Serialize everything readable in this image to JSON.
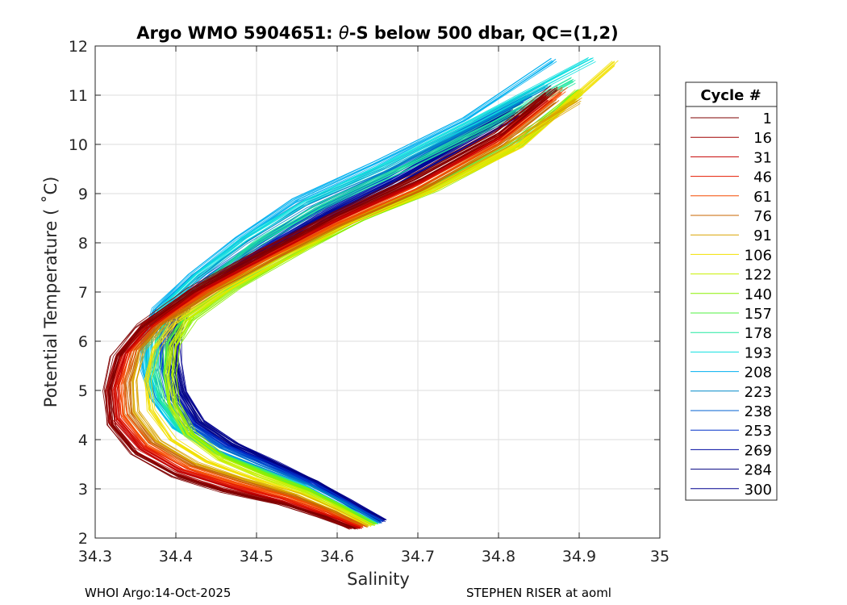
{
  "chart_data": {
    "type": "line",
    "title": "Argo WMO 5904651: θ-S below 500 dbar,  QC=(1,2)",
    "title_prefix": "Argo WMO 5904651: ",
    "title_theta": "θ",
    "title_suffix": "-S below 500 dbar,  QC=(1,2)",
    "xlabel": "Salinity",
    "ylabel": "Potential Temperature ( ˚C)",
    "xlim": [
      34.3,
      35.0
    ],
    "ylim": [
      2,
      12
    ],
    "xticks": [
      34.3,
      34.4,
      34.5,
      34.6,
      34.7,
      34.8,
      34.9,
      35.0
    ],
    "xtick_labels": [
      "34.3",
      "34.4",
      "34.5",
      "34.6",
      "34.7",
      "34.8",
      "34.9",
      "35"
    ],
    "yticks": [
      2,
      3,
      4,
      5,
      6,
      7,
      8,
      9,
      10,
      11,
      12
    ],
    "ytick_labels": [
      "2",
      "3",
      "4",
      "5",
      "6",
      "7",
      "8",
      "9",
      "10",
      "11",
      "12"
    ],
    "grid": true,
    "legend": {
      "title": "Cycle #",
      "placement": "right-outside",
      "entries": [
        {
          "label": "1",
          "color": "#7f0000"
        },
        {
          "label": "16",
          "color": "#a00000"
        },
        {
          "label": "31",
          "color": "#c40000"
        },
        {
          "label": "46",
          "color": "#e41a00"
        },
        {
          "label": "61",
          "color": "#f54a00"
        },
        {
          "label": "76",
          "color": "#c86400"
        },
        {
          "label": "91",
          "color": "#d9a400"
        },
        {
          "label": "106",
          "color": "#f2e000"
        },
        {
          "label": "122",
          "color": "#c8f000"
        },
        {
          "label": "140",
          "color": "#8cf000"
        },
        {
          "label": "157",
          "color": "#50f040"
        },
        {
          "label": "178",
          "color": "#20e8a0"
        },
        {
          "label": "193",
          "color": "#10e0e0"
        },
        {
          "label": "208",
          "color": "#00b0f0"
        },
        {
          "label": "223",
          "color": "#0088c8"
        },
        {
          "label": "238",
          "color": "#0060d0"
        },
        {
          "label": "253",
          "color": "#0030c8"
        },
        {
          "label": "269",
          "color": "#000aa0"
        },
        {
          "label": "284",
          "color": "#000080"
        },
        {
          "label": "300",
          "color": "#00008f"
        }
      ]
    },
    "series": [
      {
        "name": "1",
        "color": "#7f0000",
        "s": [
          34.62,
          34.58,
          34.53,
          34.46,
          34.4,
          34.35,
          34.32,
          34.315,
          34.325,
          34.355,
          34.42,
          34.5,
          34.6,
          34.7,
          34.8,
          34.87
        ],
        "t": [
          2.2,
          2.45,
          2.7,
          2.95,
          3.25,
          3.7,
          4.3,
          5.0,
          5.7,
          6.3,
          7.05,
          7.75,
          8.6,
          9.35,
          10.25,
          11.15
        ]
      },
      {
        "name": "16",
        "color": "#a00000",
        "s": [
          34.62,
          34.58,
          34.53,
          34.46,
          34.4,
          34.35,
          34.32,
          34.318,
          34.33,
          34.36,
          34.425,
          34.5,
          34.6,
          34.7,
          34.8,
          34.86
        ],
        "t": [
          2.2,
          2.47,
          2.73,
          3.0,
          3.32,
          3.78,
          4.35,
          5.0,
          5.7,
          6.3,
          7.05,
          7.72,
          8.55,
          9.3,
          10.2,
          11.0
        ]
      },
      {
        "name": "31",
        "color": "#c40000",
        "s": [
          34.625,
          34.58,
          34.53,
          34.465,
          34.405,
          34.355,
          34.325,
          34.322,
          34.335,
          34.365,
          34.43,
          34.51,
          34.6,
          34.7,
          34.8,
          34.86
        ],
        "t": [
          2.2,
          2.48,
          2.76,
          3.04,
          3.36,
          3.82,
          4.4,
          5.05,
          5.75,
          6.32,
          7.05,
          7.75,
          8.5,
          9.25,
          10.15,
          10.95
        ]
      },
      {
        "name": "46",
        "color": "#e41a00",
        "s": [
          34.63,
          34.585,
          34.535,
          34.47,
          34.41,
          34.36,
          34.33,
          34.327,
          34.34,
          34.37,
          34.435,
          34.51,
          34.6,
          34.7,
          34.8,
          34.86
        ],
        "t": [
          2.22,
          2.5,
          2.79,
          3.08,
          3.4,
          3.86,
          4.45,
          5.1,
          5.78,
          6.35,
          7.05,
          7.72,
          8.45,
          9.2,
          10.1,
          10.95
        ]
      },
      {
        "name": "61",
        "color": "#f54a00",
        "s": [
          34.63,
          34.59,
          34.54,
          34.475,
          34.415,
          34.365,
          34.336,
          34.333,
          34.345,
          34.375,
          34.44,
          34.52,
          34.6,
          34.7,
          34.8,
          34.88
        ],
        "t": [
          2.22,
          2.52,
          2.82,
          3.12,
          3.44,
          3.9,
          4.5,
          5.12,
          5.8,
          6.35,
          7.05,
          7.75,
          8.4,
          9.15,
          10.05,
          11.1
        ]
      },
      {
        "name": "76",
        "color": "#c86400",
        "s": [
          34.632,
          34.593,
          34.545,
          34.48,
          34.42,
          34.37,
          34.342,
          34.34,
          34.35,
          34.38,
          34.445,
          34.52,
          34.6,
          34.7,
          34.8,
          34.87
        ],
        "t": [
          2.24,
          2.54,
          2.85,
          3.16,
          3.48,
          3.94,
          4.54,
          5.15,
          5.82,
          6.38,
          7.05,
          7.72,
          8.38,
          9.1,
          10.0,
          10.9
        ]
      },
      {
        "name": "91",
        "color": "#d9a400",
        "s": [
          34.635,
          34.596,
          34.55,
          34.485,
          34.425,
          34.378,
          34.35,
          34.348,
          34.358,
          34.388,
          34.45,
          34.53,
          34.61,
          34.71,
          34.81,
          34.9
        ],
        "t": [
          2.24,
          2.56,
          2.88,
          3.2,
          3.52,
          3.98,
          4.58,
          5.2,
          5.85,
          6.4,
          7.05,
          7.8,
          8.42,
          9.12,
          10.0,
          10.9
        ]
      },
      {
        "name": "106",
        "color": "#f2e000",
        "s": [
          34.64,
          34.6,
          34.555,
          34.495,
          34.44,
          34.395,
          34.37,
          34.365,
          34.375,
          34.4,
          34.46,
          34.54,
          34.62,
          34.72,
          34.83,
          34.945
        ],
        "t": [
          2.26,
          2.58,
          2.9,
          3.22,
          3.55,
          4.0,
          4.6,
          5.2,
          5.85,
          6.4,
          7.05,
          7.8,
          8.45,
          9.1,
          10.0,
          11.65
        ]
      },
      {
        "name": "122",
        "color": "#c8f000",
        "s": [
          34.642,
          34.603,
          34.56,
          34.505,
          34.455,
          34.415,
          34.395,
          34.39,
          34.395,
          34.415,
          34.47,
          34.55,
          34.62,
          34.72,
          34.82,
          34.9
        ],
        "t": [
          2.26,
          2.6,
          2.93,
          3.26,
          3.6,
          4.1,
          4.7,
          5.3,
          5.9,
          6.45,
          7.1,
          7.8,
          8.45,
          9.1,
          9.95,
          11.1
        ]
      },
      {
        "name": "140",
        "color": "#8cf000",
        "s": [
          34.645,
          34.606,
          34.565,
          34.51,
          34.46,
          34.42,
          34.4,
          34.396,
          34.4,
          34.42,
          34.475,
          34.55,
          34.63,
          34.72,
          34.82,
          34.9
        ],
        "t": [
          2.28,
          2.62,
          2.96,
          3.3,
          3.64,
          4.14,
          4.74,
          5.32,
          5.92,
          6.48,
          7.12,
          7.82,
          8.5,
          9.1,
          9.95,
          11.05
        ]
      },
      {
        "name": "157",
        "color": "#50f040",
        "s": [
          34.645,
          34.605,
          34.563,
          34.508,
          34.456,
          34.412,
          34.39,
          34.385,
          34.39,
          34.41,
          34.47,
          34.55,
          34.63,
          34.72,
          34.82,
          34.9
        ],
        "t": [
          2.28,
          2.64,
          3.0,
          3.36,
          3.7,
          4.15,
          4.75,
          5.35,
          5.95,
          6.5,
          7.15,
          7.85,
          8.55,
          9.2,
          10.05,
          11.1
        ]
      },
      {
        "name": "178",
        "color": "#20e8a0",
        "s": [
          34.645,
          34.603,
          34.558,
          34.5,
          34.45,
          34.405,
          34.38,
          34.372,
          34.375,
          34.39,
          34.44,
          34.5,
          34.58,
          34.68,
          34.79,
          34.89
        ],
        "t": [
          2.3,
          2.66,
          3.02,
          3.38,
          3.72,
          4.18,
          4.78,
          5.38,
          5.98,
          6.55,
          7.25,
          8.0,
          8.75,
          9.5,
          10.4,
          11.3
        ]
      },
      {
        "name": "193",
        "color": "#10e0e0",
        "s": [
          34.645,
          34.6,
          34.555,
          34.497,
          34.445,
          34.4,
          34.375,
          34.365,
          34.366,
          34.38,
          34.425,
          34.485,
          34.56,
          34.66,
          34.77,
          34.915
        ],
        "t": [
          2.3,
          2.68,
          3.05,
          3.42,
          3.76,
          4.22,
          4.82,
          5.42,
          6.02,
          6.6,
          7.3,
          8.05,
          8.8,
          9.55,
          10.45,
          11.7
        ]
      },
      {
        "name": "208",
        "color": "#00b0f0",
        "s": [
          34.648,
          34.603,
          34.558,
          34.5,
          34.446,
          34.4,
          34.373,
          34.362,
          34.362,
          34.376,
          34.42,
          34.48,
          34.55,
          34.65,
          34.76,
          34.87
        ],
        "t": [
          2.3,
          2.68,
          3.06,
          3.43,
          3.78,
          4.24,
          4.84,
          5.44,
          6.05,
          6.62,
          7.32,
          8.08,
          8.85,
          9.6,
          10.5,
          11.7
        ]
      },
      {
        "name": "223",
        "color": "#0088c8",
        "s": [
          34.65,
          34.605,
          34.56,
          34.503,
          34.45,
          34.405,
          34.378,
          34.366,
          34.366,
          34.38,
          34.425,
          34.485,
          34.56,
          34.66,
          34.77,
          34.86
        ],
        "t": [
          2.32,
          2.7,
          3.08,
          3.45,
          3.8,
          4.26,
          4.86,
          5.46,
          6.06,
          6.62,
          7.3,
          8.02,
          8.78,
          9.5,
          10.4,
          11.2
        ]
      },
      {
        "name": "238",
        "color": "#0060d0",
        "s": [
          34.652,
          34.608,
          34.565,
          34.51,
          34.458,
          34.415,
          34.39,
          34.38,
          34.38,
          34.393,
          34.44,
          34.5,
          34.57,
          34.66,
          34.76,
          34.84
        ],
        "t": [
          2.32,
          2.72,
          3.1,
          3.48,
          3.84,
          4.3,
          4.9,
          5.5,
          6.1,
          6.65,
          7.3,
          7.98,
          8.7,
          9.4,
          10.3,
          11.0
        ]
      },
      {
        "name": "253",
        "color": "#0030c8",
        "s": [
          34.654,
          34.61,
          34.568,
          34.514,
          34.463,
          34.42,
          34.396,
          34.387,
          34.387,
          34.4,
          34.445,
          34.505,
          34.575,
          34.665,
          34.76,
          34.83
        ],
        "t": [
          2.33,
          2.73,
          3.12,
          3.5,
          3.86,
          4.32,
          4.92,
          5.52,
          6.12,
          6.66,
          7.3,
          7.95,
          8.65,
          9.35,
          10.2,
          10.8
        ]
      },
      {
        "name": "269",
        "color": "#000aa0",
        "s": [
          34.655,
          34.612,
          34.57,
          34.517,
          34.467,
          34.425,
          34.402,
          34.393,
          34.393,
          34.406,
          34.45,
          34.51,
          34.58,
          34.67,
          34.76,
          34.82
        ],
        "t": [
          2.34,
          2.74,
          3.13,
          3.52,
          3.88,
          4.34,
          4.94,
          5.54,
          6.14,
          6.68,
          7.3,
          7.93,
          8.6,
          9.3,
          10.15,
          10.7
        ]
      },
      {
        "name": "284",
        "color": "#000080",
        "s": [
          34.656,
          34.613,
          34.572,
          34.52,
          34.47,
          34.428,
          34.406,
          34.397,
          34.397,
          34.41,
          34.455,
          34.515,
          34.585,
          34.67,
          34.76,
          34.82
        ],
        "t": [
          2.35,
          2.75,
          3.14,
          3.53,
          3.9,
          4.36,
          4.96,
          5.56,
          6.16,
          6.7,
          7.3,
          7.92,
          8.58,
          9.25,
          10.1,
          10.65
        ]
      },
      {
        "name": "300",
        "color": "#00008f",
        "s": [
          34.658,
          34.615,
          34.574,
          34.523,
          34.474,
          34.432,
          34.41,
          34.402,
          34.402,
          34.415,
          34.46,
          34.52,
          34.59,
          34.675,
          34.765,
          34.825
        ],
        "t": [
          2.36,
          2.76,
          3.15,
          3.54,
          3.92,
          4.38,
          4.98,
          5.58,
          6.18,
          6.72,
          7.3,
          7.9,
          8.55,
          9.22,
          10.05,
          10.6
        ]
      }
    ]
  },
  "footer": {
    "left": "WHOI Argo:14-Oct-2025",
    "right": "STEPHEN RISER at aoml"
  }
}
